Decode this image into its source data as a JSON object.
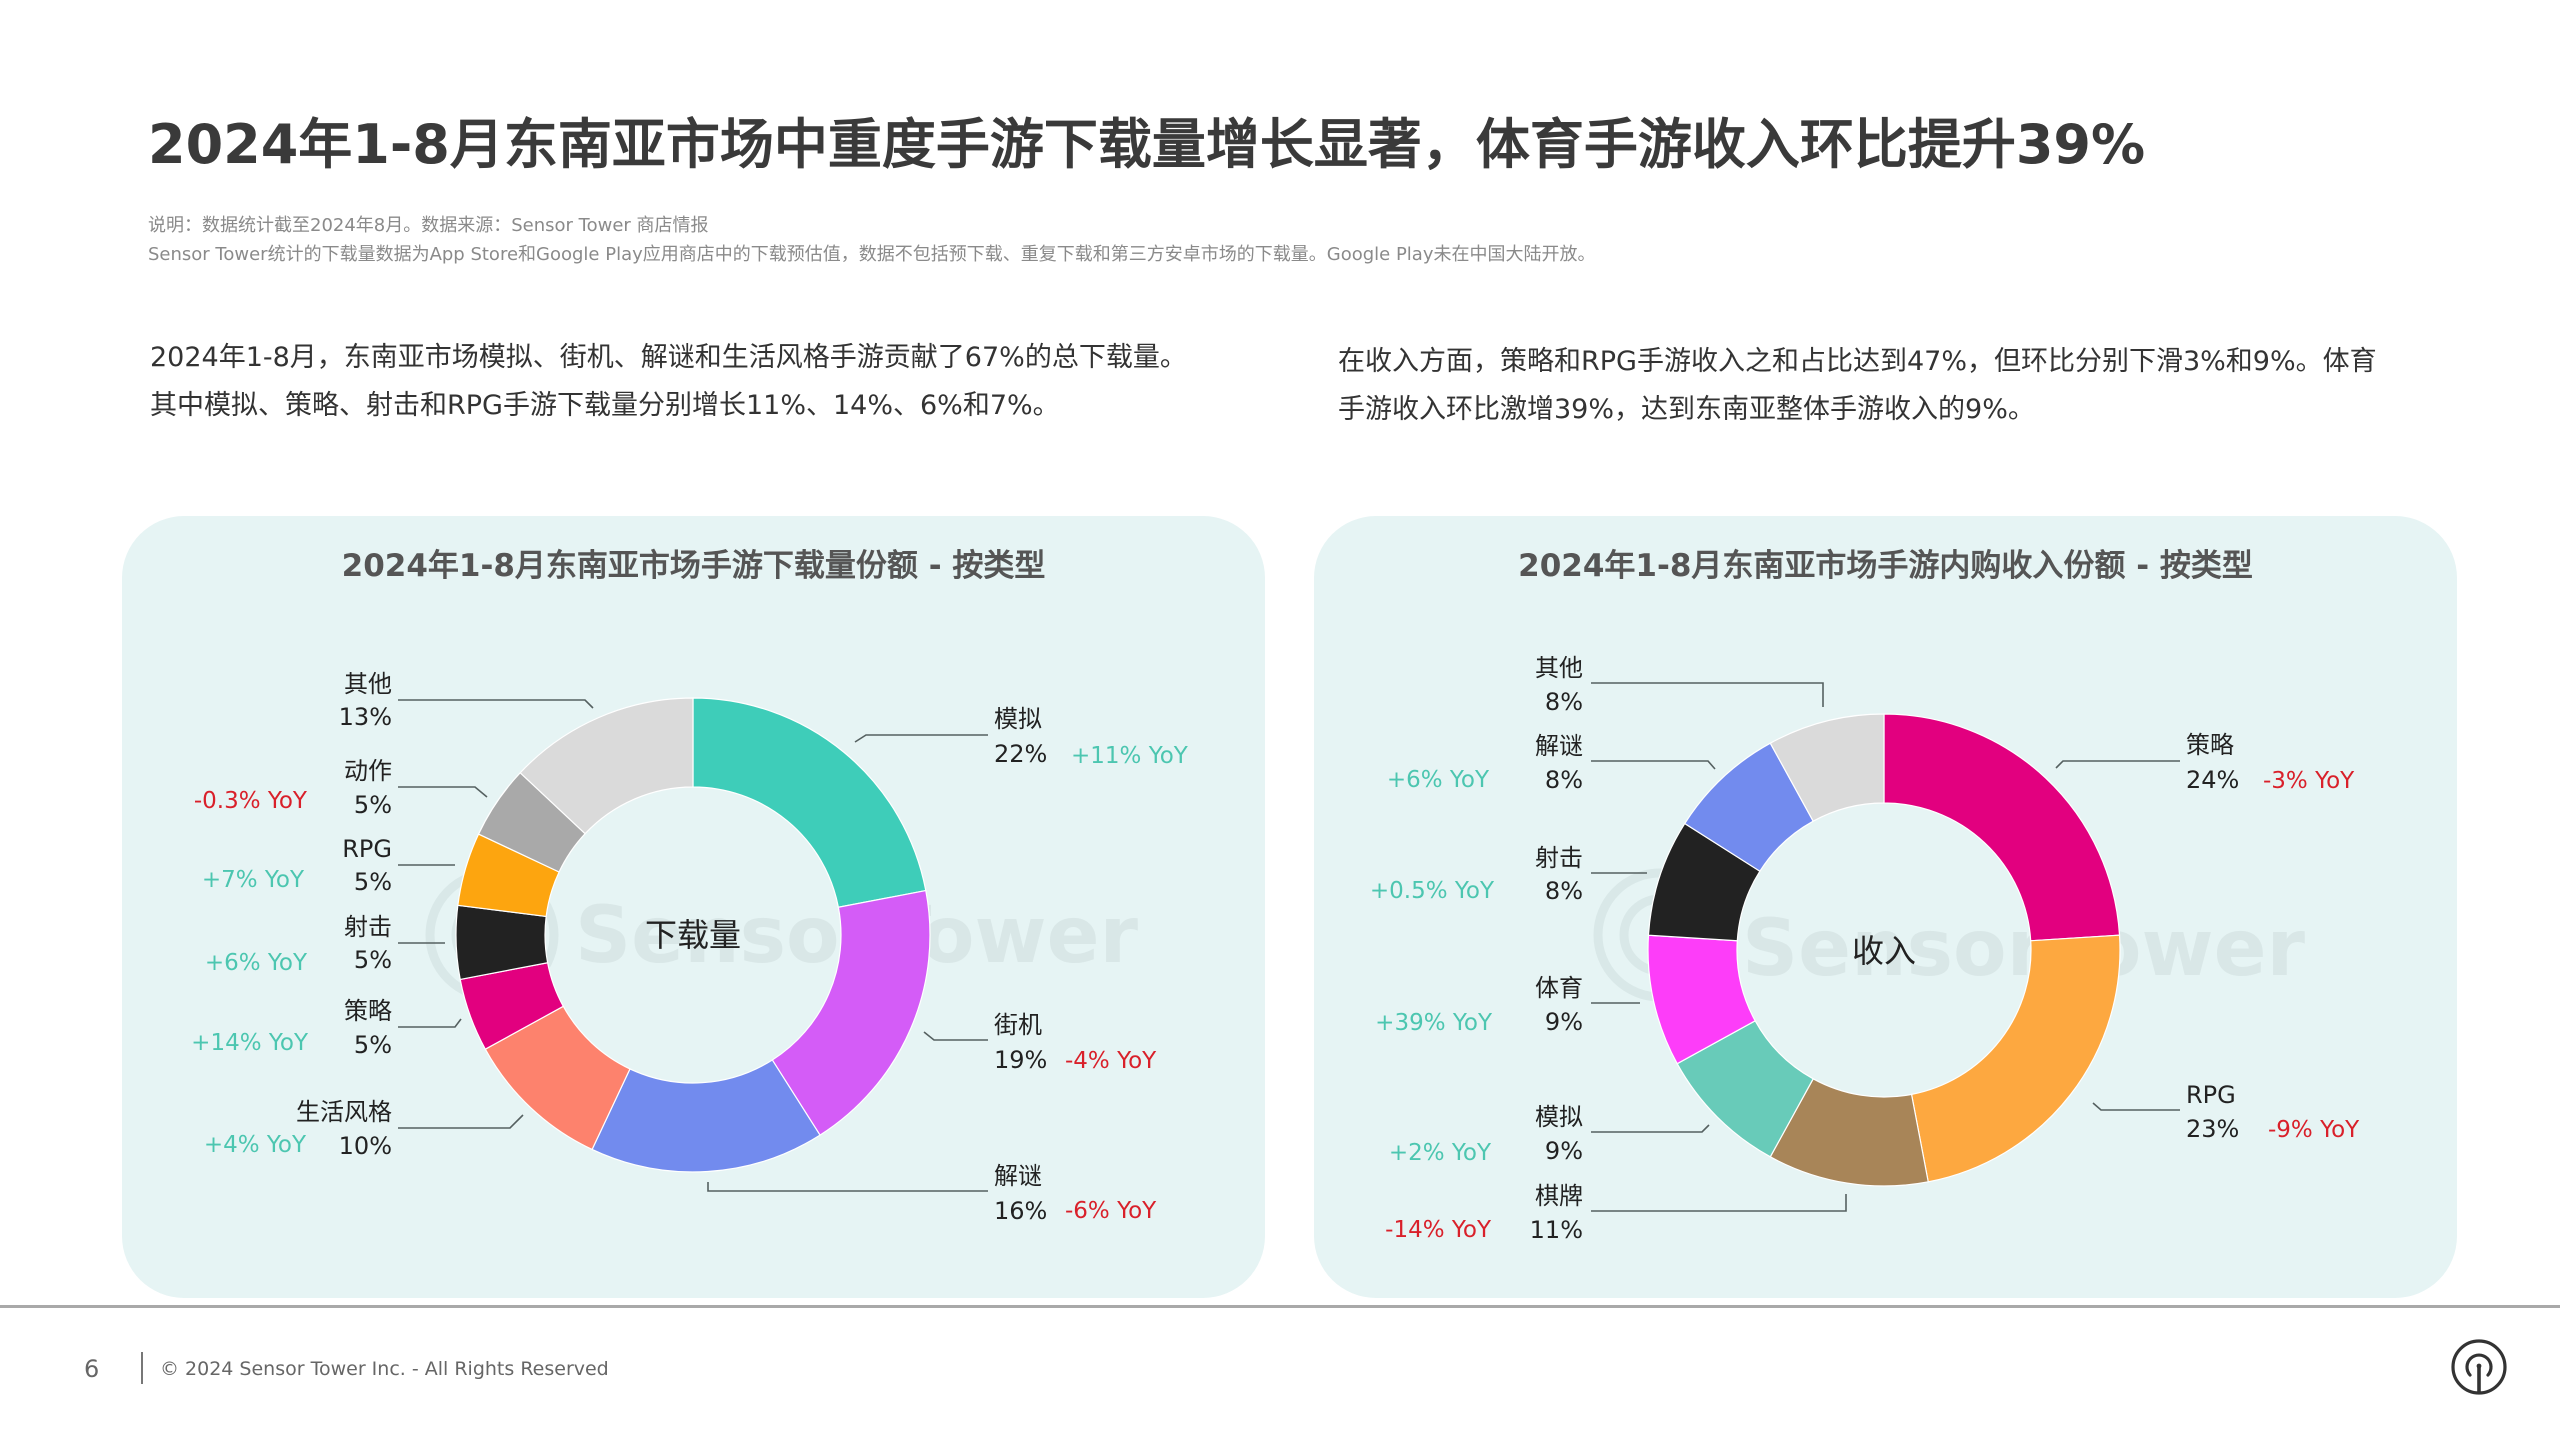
{
  "header": {
    "title": "2024年1-8月东南亚市场中重度手游下载量增长显著，体育手游收入环比提升39%",
    "notes": [
      "说明：数据统计截至2024年8月。数据来源：Sensor Tower 商店情报",
      "Sensor Tower统计的下载量数据为App Store和Google Play应用商店中的下载预估值，数据不包括预下载、重复下载和第三方安卓市场的下载量。Google Play未在中国大陆开放。"
    ]
  },
  "paragraphs": {
    "left": [
      "2024年1-8月，东南亚市场模拟、街机、解谜和生活风格手游贡献了67%的总下载量。",
      "其中模拟、策略、射击和RPG手游下载量分别增长11%、14%、6%和7%。"
    ],
    "right": [
      "在收入方面，策略和RPG手游收入之和占比达到47%，但环比分别下滑3%和9%。体育",
      "手游收入环比激增39%，达到东南亚整体手游收入的9%。"
    ]
  },
  "watermark": "SensorTower",
  "chart_data": [
    {
      "type": "pie",
      "variant": "donut",
      "title": "2024年1-8月东南亚市场手游下载量份额 - 按类型",
      "center_label": "下载量",
      "unit": "%",
      "categories": [
        "模拟",
        "街机",
        "解谜",
        "生活风格",
        "策略",
        "射击",
        "RPG",
        "动作",
        "其他"
      ],
      "values": [
        22,
        19,
        16,
        10,
        5,
        5,
        5,
        5,
        13
      ],
      "yoy": [
        "+11% YoY",
        "-4% YoY",
        "-6% YoY",
        "+4% YoY",
        "+14% YoY",
        "+6% YoY",
        "+7% YoY",
        "-0.3% YoY",
        ""
      ],
      "colors": [
        "#3ecdb9",
        "#d45cf7",
        "#728bee",
        "#fd826d",
        "#e2007f",
        "#222222",
        "#fda50f",
        "#a9a9a9",
        "#dadada"
      ],
      "start_angle_deg": 0,
      "direction": "clockwise"
    },
    {
      "type": "pie",
      "variant": "donut",
      "title": "2024年1-8月东南亚市场手游内购收入份额 - 按类型",
      "center_label": "收入",
      "unit": "%",
      "categories": [
        "策略",
        "RPG",
        "棋牌",
        "模拟",
        "体育",
        "射击",
        "解谜",
        "其他"
      ],
      "values": [
        24,
        23,
        11,
        9,
        9,
        8,
        8,
        8
      ],
      "yoy": [
        "-3% YoY",
        "-9% YoY",
        "-14% YoY",
        "+2% YoY",
        "+39% YoY",
        "+0.5% YoY",
        "+6% YoY",
        ""
      ],
      "colors": [
        "#e2007f",
        "#fda840",
        "#a88558",
        "#68cbb9",
        "#fd3df9",
        "#222222",
        "#728bee",
        "#dadada"
      ],
      "start_angle_deg": 0,
      "direction": "clockwise"
    }
  ],
  "charts": {
    "left": {
      "title": "2024年1-8月东南亚市场手游下载量份额 - 按类型",
      "center": "下载量",
      "labels": {
        "sim": {
          "name": "模拟",
          "pct": "22%",
          "yoy": "+11% YoY"
        },
        "arcade": {
          "name": "街机",
          "pct": "19%",
          "yoy": "-4% YoY"
        },
        "puzzle": {
          "name": "解谜",
          "pct": "16%",
          "yoy": "-6% YoY"
        },
        "lifestyle": {
          "name": "生活风格",
          "pct": "10%",
          "yoy": "+4% YoY"
        },
        "strategy": {
          "name": "策略",
          "pct": "5%",
          "yoy": "+14% YoY"
        },
        "shooter": {
          "name": "射击",
          "pct": "5%",
          "yoy": "+6% YoY"
        },
        "rpg": {
          "name": "RPG",
          "pct": "5%",
          "yoy": "+7% YoY"
        },
        "action": {
          "name": "动作",
          "pct": "5%",
          "yoy": "-0.3% YoY"
        },
        "other": {
          "name": "其他",
          "pct": "13%"
        }
      }
    },
    "right": {
      "title": "2024年1-8月东南亚市场手游内购收入份额 - 按类型",
      "center": "收入",
      "labels": {
        "strategy": {
          "name": "策略",
          "pct": "24%",
          "yoy": "-3% YoY"
        },
        "rpg": {
          "name": "RPG",
          "pct": "23%",
          "yoy": "-9% YoY"
        },
        "card": {
          "name": "棋牌",
          "pct": "11%",
          "yoy": "-14% YoY"
        },
        "sim": {
          "name": "模拟",
          "pct": "9%",
          "yoy": "+2% YoY"
        },
        "sports": {
          "name": "体育",
          "pct": "9%",
          "yoy": "+39% YoY"
        },
        "shooter": {
          "name": "射击",
          "pct": "8%",
          "yoy": "+0.5% YoY"
        },
        "puzzle": {
          "name": "解谜",
          "pct": "8%",
          "yoy": "+6% YoY"
        },
        "other": {
          "name": "其他",
          "pct": "8%"
        }
      }
    }
  },
  "footer": {
    "page_number": "6",
    "copyright": "© 2024 Sensor Tower Inc. - All Rights Reserved",
    "logo_icon": "sensor-tower-logo-icon"
  }
}
